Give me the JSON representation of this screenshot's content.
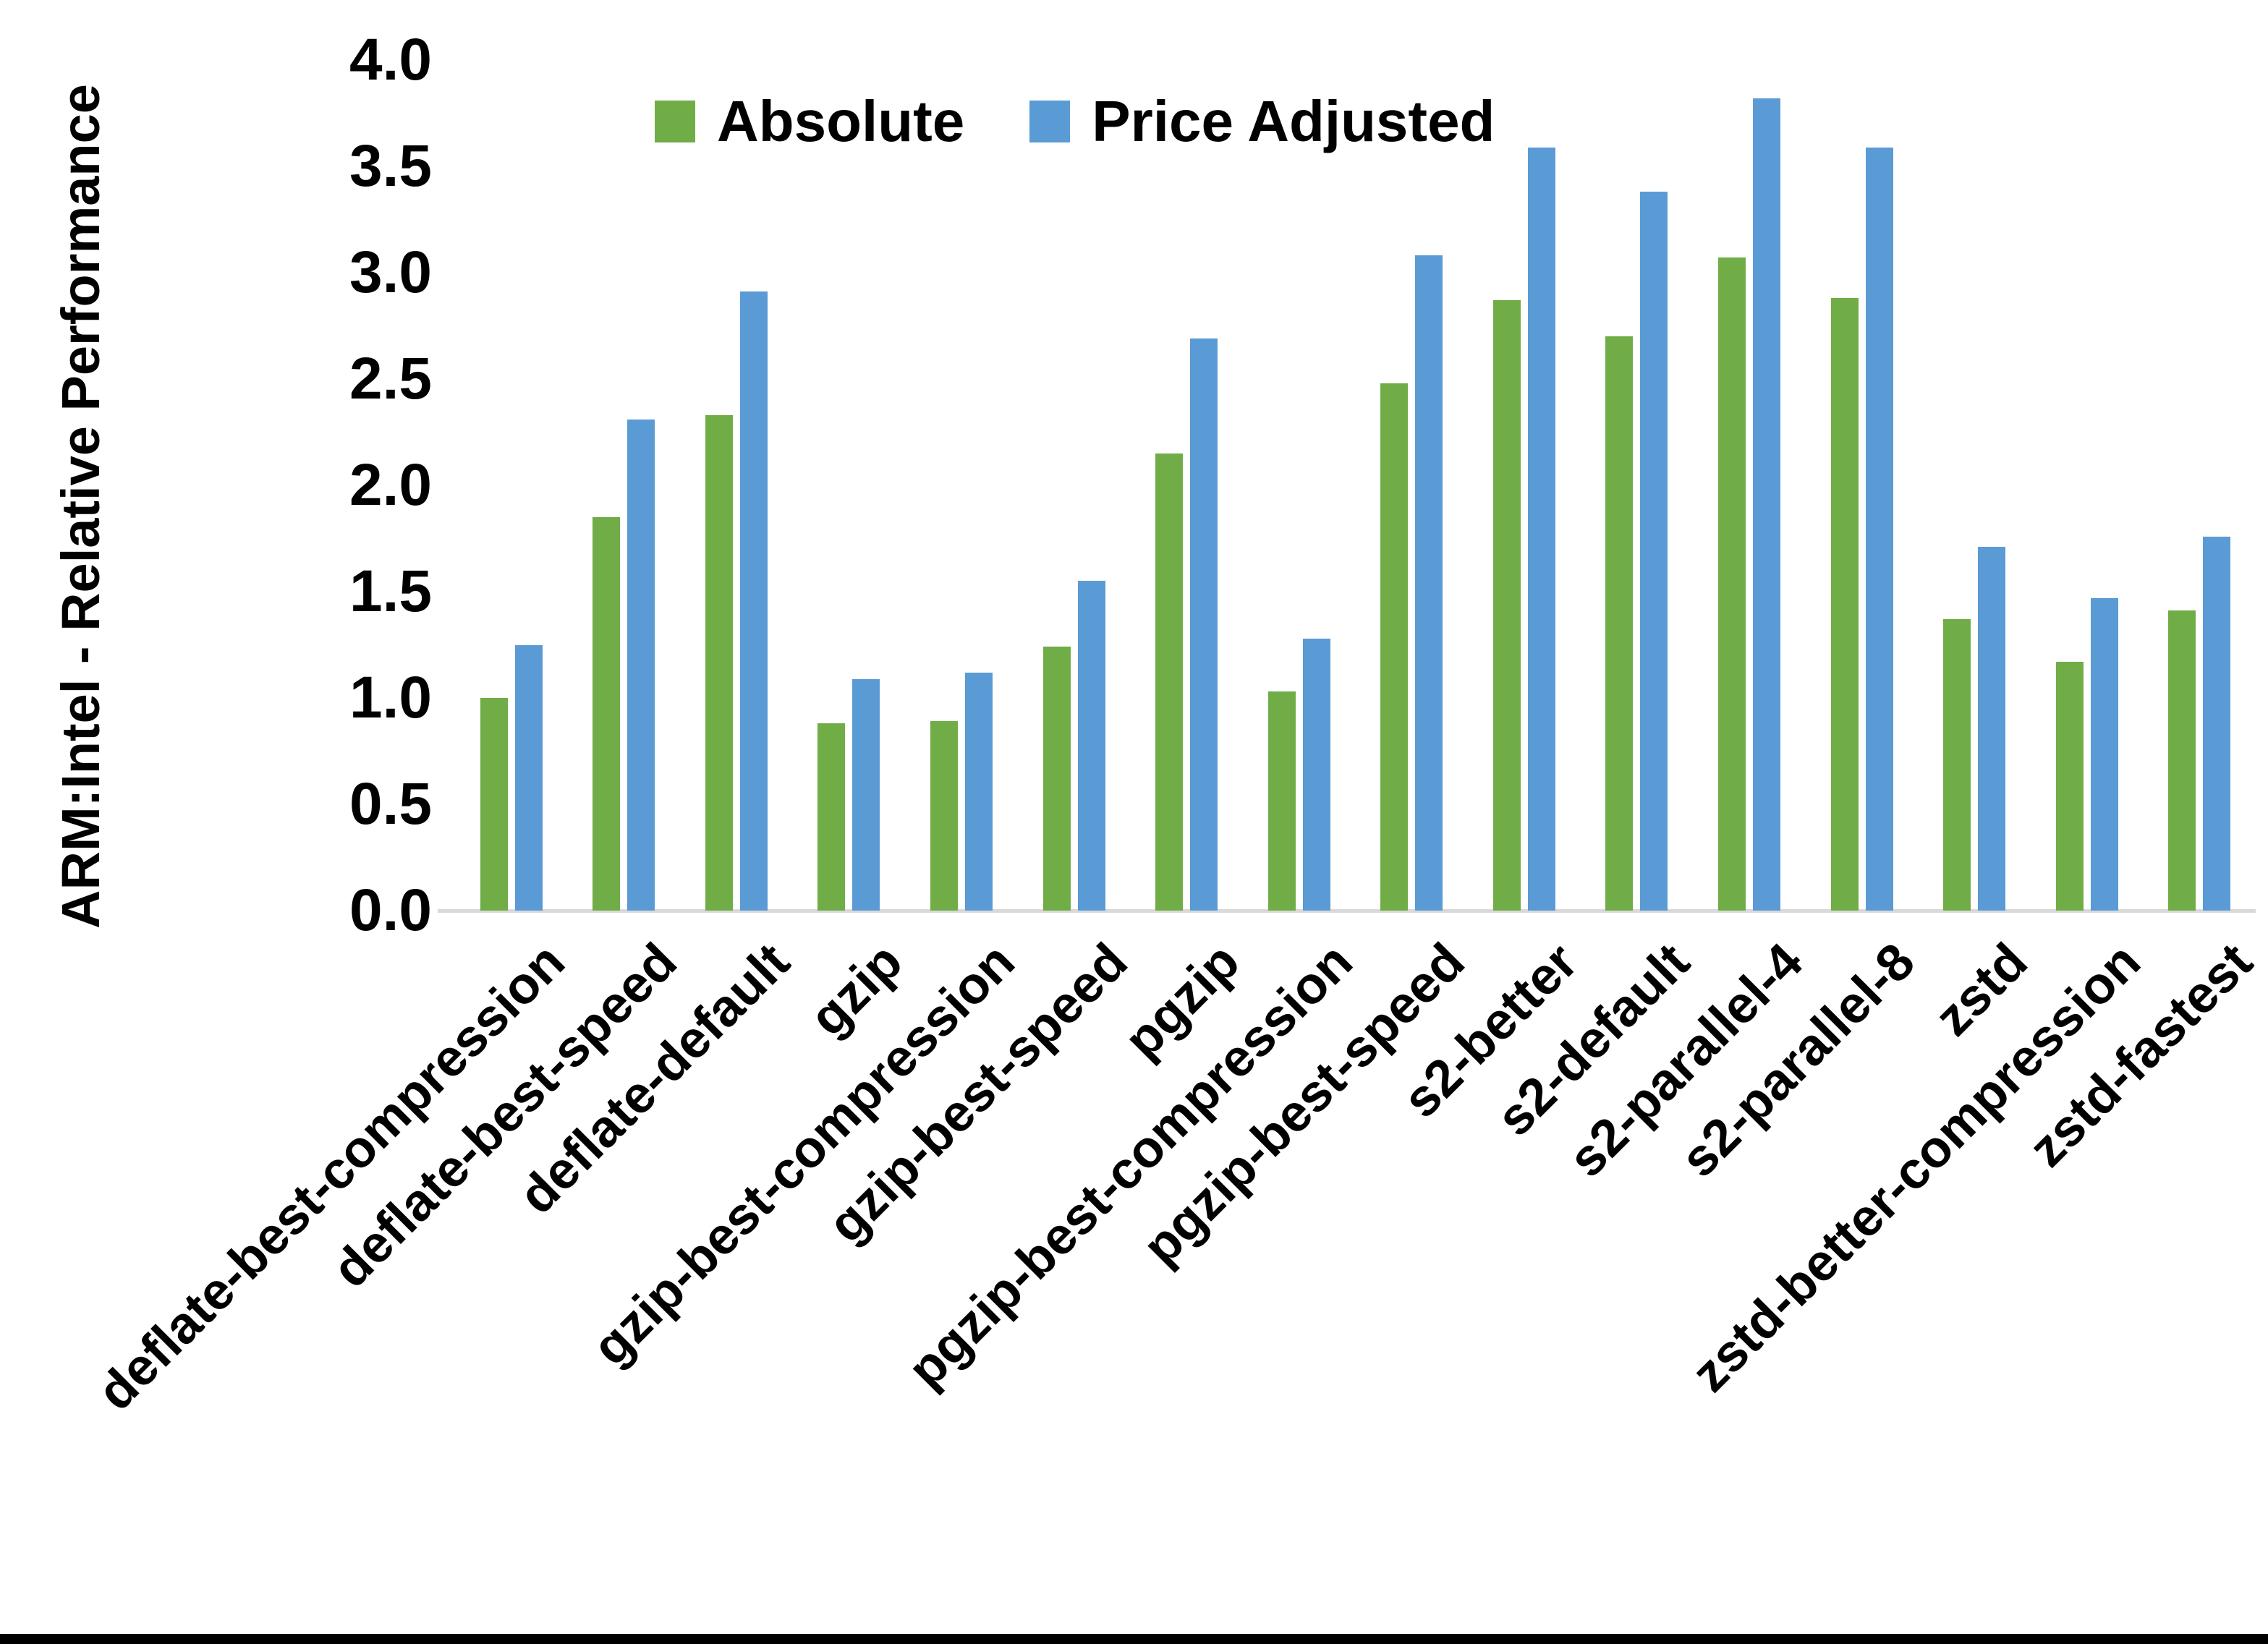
{
  "chart_data": {
    "type": "bar",
    "title": "",
    "ylabel": "ARM:Intel - Relative Performance",
    "xlabel": "",
    "categories": [
      "deflate-best-compression",
      "deflate-best-speed",
      "deflate-default",
      "gzip",
      "gzip-best-compression",
      "gzip-best-speed",
      "pgzip",
      "pgzip-best-compression",
      "pgzip-best-speed",
      "s2-better",
      "s2-default",
      "s2-parallel-4",
      "s2-parallel-8",
      "zstd",
      "zstd-better-compression",
      "zstd-fastest"
    ],
    "series": [
      {
        "name": "Absolute",
        "color": "#70AD47",
        "values": [
          1.0,
          1.85,
          2.33,
          0.88,
          0.89,
          1.24,
          2.15,
          1.03,
          2.48,
          2.87,
          2.7,
          3.07,
          2.88,
          1.37,
          1.17,
          1.41
        ]
      },
      {
        "name": "Price Adjusted",
        "color": "#5B9BD5",
        "values": [
          1.25,
          2.31,
          2.91,
          1.09,
          1.12,
          1.55,
          2.69,
          1.28,
          3.08,
          3.59,
          3.38,
          3.82,
          3.59,
          1.71,
          1.47,
          1.76
        ]
      }
    ],
    "ylim": [
      0.0,
      4.0
    ],
    "ytick_step": 0.5,
    "ytick_labels": [
      "0.0",
      "0.5",
      "1.0",
      "1.5",
      "2.0",
      "2.5",
      "3.0",
      "3.5",
      "4.0"
    ],
    "legend_position": "top-center",
    "grid": false,
    "axis_line_color": "#d9d9d9",
    "text_color": "#000000",
    "bar_label_rotation_deg": 45
  }
}
